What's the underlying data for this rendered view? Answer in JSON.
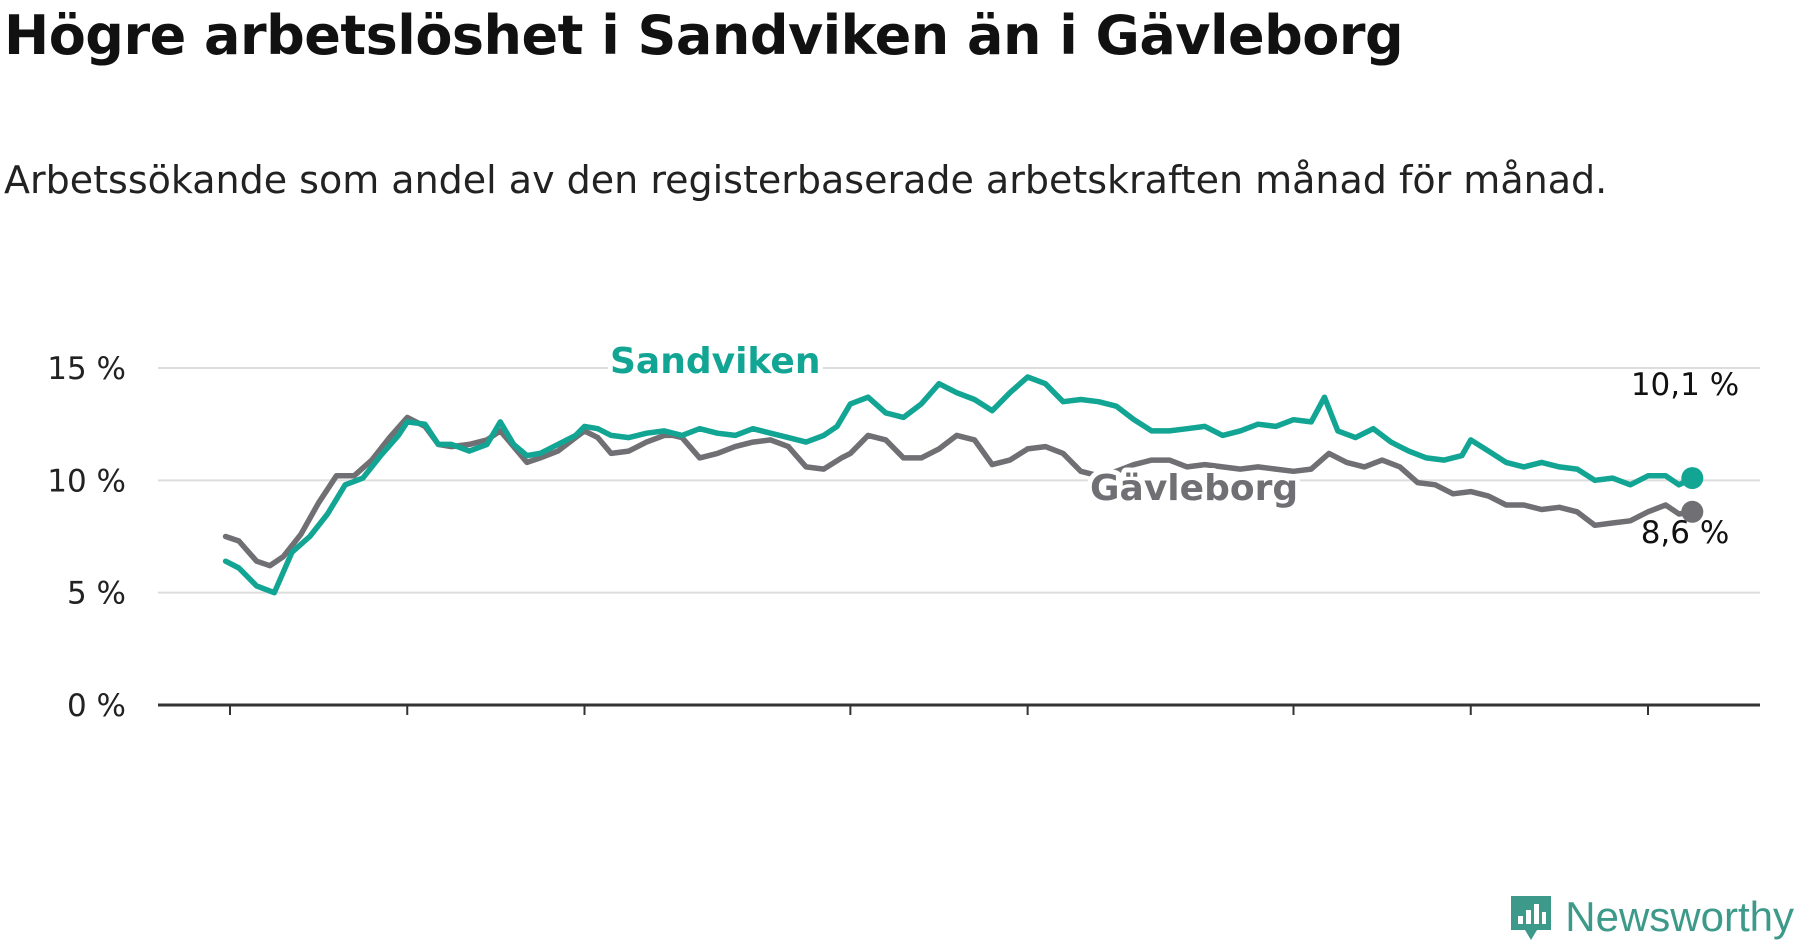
{
  "title": "Högre arbetslöshet i Sandviken än i Gävleborg",
  "subtitle": "Arbetssökande som andel av den registerbaserade arbetskraften månad för månad.",
  "brand": "Newsworthy",
  "colors": {
    "sandviken": "#12a594",
    "gavleborg": "#707074",
    "grid": "#dddddd",
    "axis": "#333333"
  },
  "chart_data": {
    "type": "line",
    "title": "Högre arbetslöshet i Sandviken än i Gävleborg",
    "ylim": [
      0,
      15
    ],
    "yticks": [
      0,
      5,
      10,
      15
    ],
    "ytick_labels": [
      "0 %",
      "5 %",
      "10 %",
      "15 %"
    ],
    "xlim": [
      2008.0,
      2025.0
    ],
    "xticks": [
      2008,
      2010,
      2012,
      2015,
      2017,
      2020,
      2022,
      2024
    ],
    "grid": true,
    "legend": "inline labels",
    "series": [
      {
        "name": "Sandviken",
        "end_label": "10,1 %",
        "x": [
          2007.95,
          2008.1,
          2008.3,
          2008.5,
          2008.7,
          2008.9,
          2009.1,
          2009.3,
          2009.5,
          2009.7,
          2009.9,
          2010.0,
          2010.2,
          2010.35,
          2010.5,
          2010.7,
          2010.9,
          2011.05,
          2011.2,
          2011.35,
          2011.5,
          2011.7,
          2011.9,
          2012.0,
          2012.15,
          2012.3,
          2012.5,
          2012.7,
          2012.9,
          2013.1,
          2013.3,
          2013.5,
          2013.7,
          2013.9,
          2014.1,
          2014.3,
          2014.5,
          2014.7,
          2014.85,
          2015.0,
          2015.2,
          2015.4,
          2015.6,
          2015.8,
          2016.0,
          2016.2,
          2016.4,
          2016.6,
          2016.8,
          2017.0,
          2017.2,
          2017.4,
          2017.6,
          2017.8,
          2018.0,
          2018.2,
          2018.4,
          2018.6,
          2018.8,
          2019.0,
          2019.2,
          2019.4,
          2019.6,
          2019.8,
          2020.0,
          2020.2,
          2020.35,
          2020.5,
          2020.7,
          2020.9,
          2021.1,
          2021.3,
          2021.5,
          2021.7,
          2021.9,
          2022.0,
          2022.2,
          2022.4,
          2022.6,
          2022.8,
          2023.0,
          2023.2,
          2023.4,
          2023.6,
          2023.8,
          2024.0,
          2024.2,
          2024.35,
          2024.5
        ],
        "values": [
          6.4,
          6.1,
          5.3,
          5.0,
          6.8,
          7.5,
          8.5,
          9.8,
          10.1,
          11.1,
          12.0,
          12.6,
          12.5,
          11.6,
          11.6,
          11.3,
          11.6,
          12.6,
          11.6,
          11.1,
          11.2,
          11.6,
          12.0,
          12.4,
          12.3,
          12.0,
          11.9,
          12.1,
          12.2,
          12.0,
          12.3,
          12.1,
          12.0,
          12.3,
          12.1,
          11.9,
          11.7,
          12.0,
          12.4,
          13.4,
          13.7,
          13.0,
          12.8,
          13.4,
          14.3,
          13.9,
          13.6,
          13.1,
          13.9,
          14.6,
          14.3,
          13.5,
          13.6,
          13.5,
          13.3,
          12.7,
          12.2,
          12.2,
          12.3,
          12.4,
          12.0,
          12.2,
          12.5,
          12.4,
          12.7,
          12.6,
          13.7,
          12.2,
          11.9,
          12.3,
          11.7,
          11.3,
          11.0,
          10.9,
          11.1,
          11.8,
          11.3,
          10.8,
          10.6,
          10.8,
          10.6,
          10.5,
          10.0,
          10.1,
          9.8,
          10.2,
          10.2,
          9.8,
          10.1
        ]
      },
      {
        "name": "Gävleborg",
        "end_label": "8,6 %",
        "x": [
          2007.95,
          2008.1,
          2008.3,
          2008.45,
          2008.6,
          2008.8,
          2009.0,
          2009.2,
          2009.4,
          2009.6,
          2009.8,
          2010.0,
          2010.2,
          2010.35,
          2010.5,
          2010.7,
          2010.9,
          2011.05,
          2011.2,
          2011.35,
          2011.5,
          2011.7,
          2011.9,
          2012.0,
          2012.15,
          2012.3,
          2012.5,
          2012.7,
          2012.9,
          2013.0,
          2013.1,
          2013.3,
          2013.5,
          2013.7,
          2013.9,
          2014.1,
          2014.3,
          2014.5,
          2014.7,
          2014.9,
          2015.0,
          2015.2,
          2015.4,
          2015.6,
          2015.8,
          2016.0,
          2016.2,
          2016.4,
          2016.6,
          2016.8,
          2017.0,
          2017.2,
          2017.4,
          2017.6,
          2017.8,
          2018.0,
          2018.2,
          2018.4,
          2018.6,
          2018.8,
          2019.0,
          2019.2,
          2019.4,
          2019.6,
          2019.8,
          2020.0,
          2020.2,
          2020.4,
          2020.6,
          2020.8,
          2021.0,
          2021.2,
          2021.4,
          2021.6,
          2021.8,
          2022.0,
          2022.2,
          2022.4,
          2022.6,
          2022.8,
          2023.0,
          2023.2,
          2023.4,
          2023.6,
          2023.8,
          2024.0,
          2024.2,
          2024.35,
          2024.5
        ],
        "values": [
          7.5,
          7.3,
          6.4,
          6.2,
          6.6,
          7.6,
          9.0,
          10.2,
          10.2,
          10.9,
          11.9,
          12.8,
          12.4,
          11.6,
          11.5,
          11.6,
          11.8,
          12.2,
          11.5,
          10.8,
          11.0,
          11.3,
          11.9,
          12.2,
          11.9,
          11.2,
          11.3,
          11.7,
          12.0,
          12.0,
          11.9,
          11.0,
          11.2,
          11.5,
          11.7,
          11.8,
          11.5,
          10.6,
          10.5,
          11.0,
          11.2,
          12.0,
          11.8,
          11.0,
          11.0,
          11.4,
          12.0,
          11.8,
          10.7,
          10.9,
          11.4,
          11.5,
          11.2,
          10.4,
          10.2,
          10.4,
          10.7,
          10.9,
          10.9,
          10.6,
          10.7,
          10.6,
          10.5,
          10.6,
          10.5,
          10.4,
          10.5,
          11.2,
          10.8,
          10.6,
          10.9,
          10.6,
          9.9,
          9.8,
          9.4,
          9.5,
          9.3,
          8.9,
          8.9,
          8.7,
          8.8,
          8.6,
          8.0,
          8.1,
          8.2,
          8.6,
          8.9,
          8.5,
          8.6
        ]
      }
    ]
  }
}
